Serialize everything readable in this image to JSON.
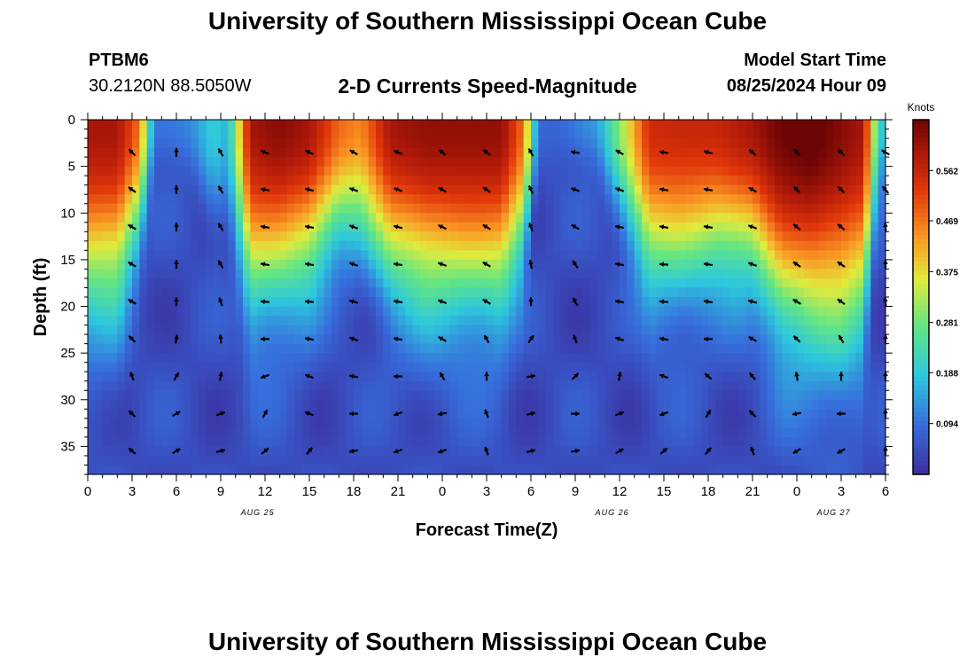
{
  "header": {
    "title": "University of Southern Mississippi Ocean Cube",
    "station_id": "PTBM6",
    "coordinates": "30.2120N  88.5050W",
    "subtitle": "2-D Currents Speed-Magnitude",
    "model_start_label": "Model Start Time",
    "model_start_value": "08/25/2024 Hour 09"
  },
  "footer": {
    "title": "University of Southern Mississippi Ocean Cube"
  },
  "chart_data": {
    "type": "heatmap",
    "title": "2-D Currents Speed-Magnitude",
    "xlabel": "Forecast Time(Z)",
    "ylabel": "Depth (ft)",
    "x_tick_labels": [
      "0",
      "3",
      "6",
      "9",
      "12",
      "15",
      "18",
      "21",
      "0",
      "3",
      "6",
      "9",
      "12",
      "15",
      "18",
      "21",
      "0",
      "3",
      "6"
    ],
    "x_date_labels": [
      {
        "label": "AUG 25",
        "at_index": 11.5
      },
      {
        "label": "AUG 26",
        "at_index": 35.5
      },
      {
        "label": "AUG 27",
        "at_index": 50.5
      }
    ],
    "xlim_hours": [
      0,
      54
    ],
    "y_ticks": [
      0,
      5,
      10,
      15,
      20,
      25,
      30,
      35
    ],
    "ylim": [
      0,
      38
    ],
    "y_inverted": true,
    "colorbar": {
      "label": "Knots",
      "ticks": [
        "0.562",
        "0.469",
        "0.375",
        "0.281",
        "0.188",
        "0.094"
      ],
      "tick_values": [
        0.562,
        0.469,
        0.375,
        0.281,
        0.188,
        0.094
      ],
      "range": [
        0,
        0.656
      ]
    },
    "speed_profile": {
      "hours": [
        0,
        2,
        3.5,
        4.5,
        5.5,
        7,
        8.5,
        9.5,
        11,
        13,
        15,
        17,
        18.5,
        20.5,
        23,
        26,
        28,
        29.5,
        30.5,
        32,
        34.5,
        36,
        38,
        40,
        42.5,
        45,
        47,
        49,
        51,
        52.5,
        53.3,
        54
      ],
      "surface": [
        0.6,
        0.6,
        0.47,
        0.1,
        0.1,
        0.12,
        0.2,
        0.16,
        0.6,
        0.63,
        0.6,
        0.48,
        0.45,
        0.6,
        0.62,
        0.62,
        0.62,
        0.47,
        0.08,
        0.08,
        0.14,
        0.3,
        0.55,
        0.56,
        0.56,
        0.6,
        0.66,
        0.68,
        0.63,
        0.6,
        0.3,
        0.14
      ],
      "depth_scale": [
        18,
        18,
        12,
        5,
        5,
        5,
        10,
        10,
        18,
        17,
        16,
        12,
        12,
        16,
        18,
        18,
        18,
        14,
        5,
        5,
        5,
        10,
        16,
        16,
        15,
        15,
        20,
        21,
        22,
        20,
        10,
        6
      ]
    },
    "arrow_grid": {
      "hours": [
        3,
        6,
        9,
        12,
        15,
        18,
        21,
        24,
        27,
        30,
        33,
        36,
        39,
        42,
        45,
        48,
        51,
        54
      ],
      "depths": [
        3.5,
        7.5,
        11.5,
        15.5,
        19.5,
        23.5,
        27.5,
        31.5,
        35.5
      ],
      "angles_deg": [
        [
          135,
          90,
          120,
          160,
          155,
          150,
          160,
          140,
          140,
          120,
          170,
          150,
          170,
          165,
          140,
          135,
          135,
          150
        ],
        [
          145,
          90,
          120,
          170,
          165,
          160,
          160,
          150,
          145,
          115,
          160,
          160,
          170,
          170,
          150,
          135,
          135,
          130
        ],
        [
          150,
          90,
          120,
          170,
          170,
          160,
          165,
          155,
          150,
          110,
          150,
          170,
          170,
          170,
          160,
          140,
          140,
          95
        ],
        [
          150,
          90,
          120,
          170,
          170,
          160,
          170,
          160,
          150,
          100,
          125,
          170,
          175,
          170,
          160,
          145,
          145,
          90
        ],
        [
          150,
          90,
          110,
          175,
          175,
          165,
          170,
          160,
          150,
          90,
          120,
          170,
          175,
          170,
          165,
          150,
          145,
          95
        ],
        [
          135,
          80,
          95,
          180,
          170,
          160,
          170,
          150,
          120,
          55,
          110,
          160,
          170,
          180,
          150,
          135,
          120,
          90
        ],
        [
          110,
          60,
          80,
          200,
          160,
          170,
          180,
          120,
          90,
          10,
          45,
          80,
          160,
          140,
          130,
          100,
          90,
          90
        ],
        [
          135,
          30,
          20,
          60,
          160,
          180,
          200,
          190,
          110,
          15,
          0,
          20,
          200,
          60,
          135,
          190,
          180,
          90
        ],
        [
          140,
          30,
          15,
          40,
          50,
          190,
          200,
          200,
          110,
          15,
          10,
          30,
          40,
          50,
          110,
          210,
          210,
          90
        ]
      ]
    }
  }
}
